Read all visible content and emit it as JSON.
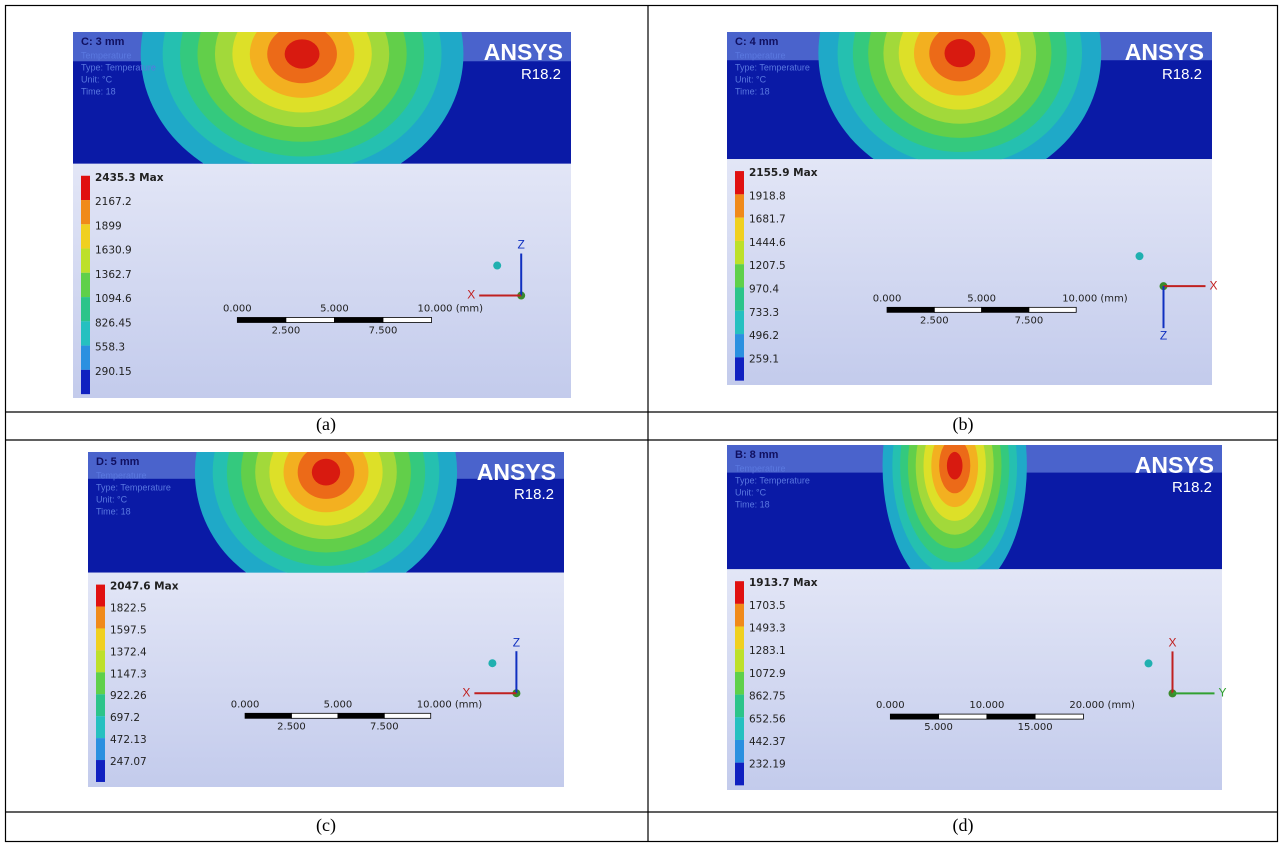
{
  "panels": [
    {
      "title": "C: 3 mm",
      "info": [
        "Temperature",
        "Type: Temperature",
        "Unit: °C",
        "Time: 18"
      ],
      "brand": "ANSYS",
      "version": "R18.2",
      "legend": [
        "2435.3 Max",
        "2167.2",
        "1899",
        "1630.9",
        "1362.7",
        "1094.6",
        "826.45",
        "558.3",
        "290.15"
      ],
      "scale_top": [
        "0.000",
        "5.000",
        "10.000 (mm)"
      ],
      "scale_bottom": [
        "2.500",
        "7.500"
      ],
      "axes": {
        "up": "Z",
        "left": "X"
      },
      "caption": "(a)"
    },
    {
      "title": "C: 4 mm",
      "info": [
        "Temperature",
        "Type: Temperature",
        "Unit: °C",
        "Time: 18"
      ],
      "brand": "ANSYS",
      "version": "R18.2",
      "legend": [
        "2155.9 Max",
        "1918.8",
        "1681.7",
        "1444.6",
        "1207.5",
        "970.4",
        "733.3",
        "496.2",
        "259.1"
      ],
      "scale_top": [
        "0.000",
        "5.000",
        "10.000 (mm)"
      ],
      "scale_bottom": [
        "2.500",
        "7.500"
      ],
      "axes": {
        "right": "X",
        "down": "Z"
      },
      "caption": "(b)"
    },
    {
      "title": "D: 5 mm",
      "info": [
        "Temperature",
        "Type: Temperature",
        "Unit: °C",
        "Time: 18"
      ],
      "brand": "ANSYS",
      "version": "R18.2",
      "legend": [
        "2047.6 Max",
        "1822.5",
        "1597.5",
        "1372.4",
        "1147.3",
        "922.26",
        "697.2",
        "472.13",
        "247.07"
      ],
      "scale_top": [
        "0.000",
        "5.000",
        "10.000 (mm)"
      ],
      "scale_bottom": [
        "2.500",
        "7.500"
      ],
      "axes": {
        "up": "Z",
        "left": "X"
      },
      "caption": "(c)"
    },
    {
      "title": "B: 8 mm",
      "info": [
        "Temperature",
        "Type: Temperature",
        "Unit: °C",
        "Time: 18"
      ],
      "brand": "ANSYS",
      "version": "R18.2",
      "legend": [
        "1913.7 Max",
        "1703.5",
        "1493.3",
        "1283.1",
        "1072.9",
        "862.75",
        "652.56",
        "442.37",
        "232.19"
      ],
      "scale_top": [
        "0.000",
        "10.000",
        "20.000 (mm)"
      ],
      "scale_bottom": [
        "5.000",
        "15.000"
      ],
      "axes": {
        "up": "X",
        "right": "Y"
      },
      "caption": "(d)"
    }
  ]
}
